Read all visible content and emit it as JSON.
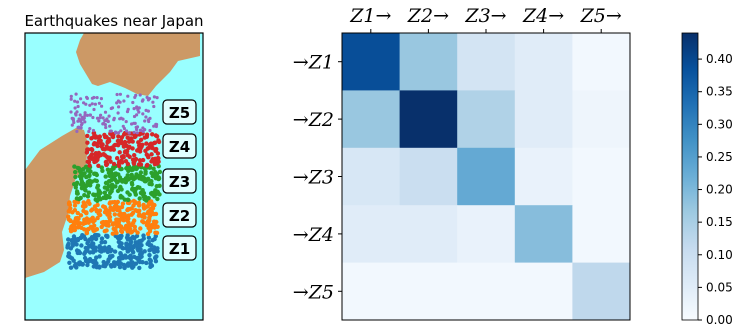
{
  "map_panel": {
    "title": "Earthquakes near Japan",
    "zone_colors": [
      "#1f77b4",
      "#ff7f0e",
      "#2ca02c",
      "#d62728",
      "#9467bd"
    ],
    "sea_color": "#99ffff",
    "land_color": "#cc9966"
  },
  "chart_data": {
    "type": "heatmap",
    "title": "",
    "x_tick_labels": [
      "Z1→",
      "Z2→",
      "Z3→",
      "Z4→",
      "Z5→"
    ],
    "y_tick_labels": [
      "→Z1",
      "→Z2",
      "→Z3",
      "→Z4",
      "→Z5"
    ],
    "colormap": "Blues",
    "vmin": 0.0,
    "vmax": 0.44,
    "colorbar_ticks": [
      "0.00",
      "0.05",
      "0.10",
      "0.15",
      "0.20",
      "0.25",
      "0.30",
      "0.35",
      "0.40"
    ],
    "matrix": [
      [
        0.39,
        0.17,
        0.08,
        0.05,
        0.01
      ],
      [
        0.17,
        0.44,
        0.14,
        0.05,
        0.02
      ],
      [
        0.07,
        0.1,
        0.23,
        0.03,
        0.01
      ],
      [
        0.05,
        0.05,
        0.03,
        0.19,
        0.01
      ],
      [
        0.01,
        0.01,
        0.01,
        0.01,
        0.12
      ]
    ]
  }
}
